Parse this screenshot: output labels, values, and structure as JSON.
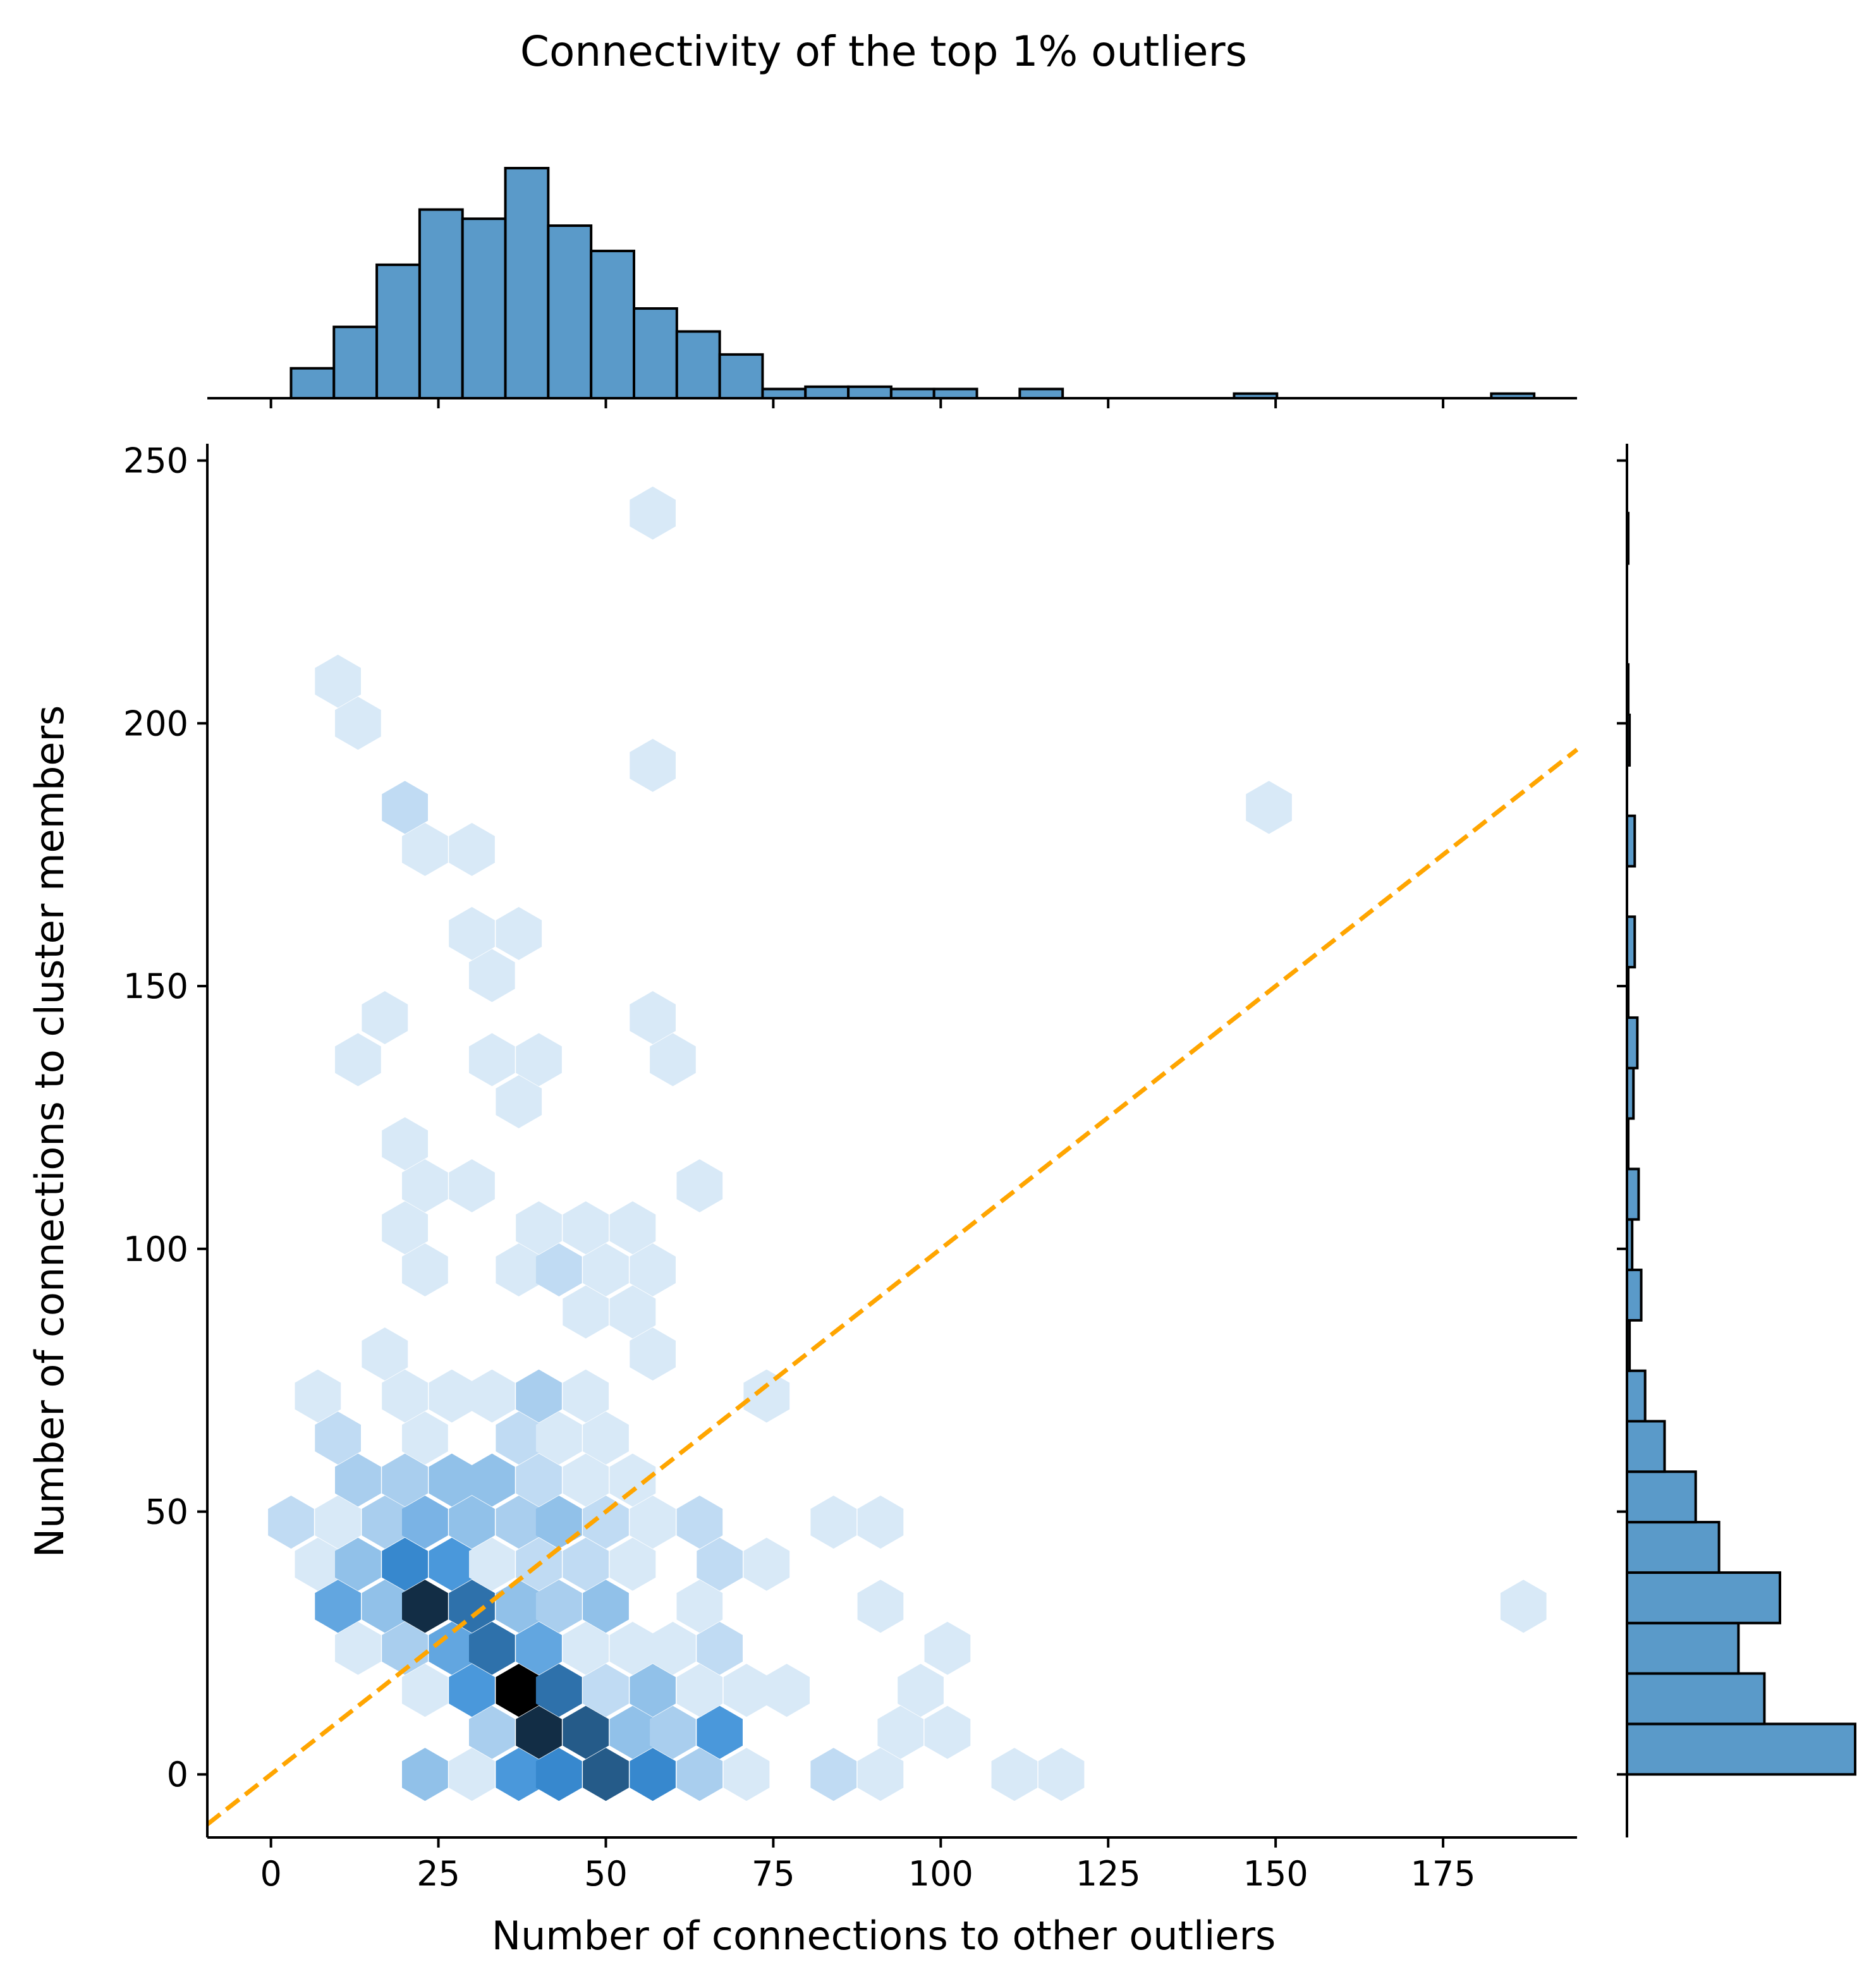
{
  "chart_data": {
    "type": "hexbin",
    "title": "Connectivity of the top 1% outliers",
    "xlabel": "Number of connections to other outliers",
    "ylabel": "Number of connections to cluster members",
    "xlim": [
      -9.5,
      195
    ],
    "ylim": [
      -12,
      252
    ],
    "xticks": [
      0,
      25,
      50,
      75,
      100,
      125,
      150,
      175
    ],
    "yticks": [
      0,
      50,
      100,
      150,
      200,
      250
    ],
    "reference_line": {
      "label": "y = x",
      "slope": 1,
      "intercept": 0,
      "color": "#ffa500",
      "style": "dashed"
    },
    "hex_color": "#3a8fd8",
    "hexbins": [
      [
        57,
        240,
        1
      ],
      [
        10,
        208,
        1
      ],
      [
        13,
        200,
        1
      ],
      [
        57,
        192,
        1
      ],
      [
        20,
        184,
        2
      ],
      [
        149,
        184,
        1
      ],
      [
        23,
        176,
        1
      ],
      [
        30,
        176,
        1
      ],
      [
        30,
        160,
        1
      ],
      [
        37,
        160,
        1
      ],
      [
        33,
        152,
        1
      ],
      [
        17,
        144,
        1
      ],
      [
        57,
        144,
        1
      ],
      [
        13,
        136,
        1
      ],
      [
        33,
        136,
        1
      ],
      [
        40,
        136,
        1
      ],
      [
        60,
        136,
        1
      ],
      [
        37,
        128,
        1
      ],
      [
        20,
        120,
        1
      ],
      [
        23,
        112,
        1
      ],
      [
        30,
        112,
        1
      ],
      [
        64,
        112,
        1
      ],
      [
        20,
        104,
        1
      ],
      [
        40,
        104,
        1
      ],
      [
        47,
        104,
        1
      ],
      [
        54,
        104,
        1
      ],
      [
        23,
        96,
        1
      ],
      [
        37,
        96,
        1
      ],
      [
        43,
        96,
        2
      ],
      [
        50,
        96,
        1
      ],
      [
        57,
        96,
        1
      ],
      [
        47,
        88,
        1
      ],
      [
        54,
        88,
        1
      ],
      [
        17,
        80,
        1
      ],
      [
        57,
        80,
        1
      ],
      [
        7,
        72,
        1
      ],
      [
        20,
        72,
        1
      ],
      [
        27,
        72,
        1
      ],
      [
        33,
        72,
        1
      ],
      [
        40,
        72,
        3
      ],
      [
        47,
        72,
        1
      ],
      [
        74,
        72,
        1
      ],
      [
        10,
        64,
        2
      ],
      [
        23,
        64,
        1
      ],
      [
        37,
        64,
        2
      ],
      [
        43,
        64,
        1
      ],
      [
        50,
        64,
        1
      ],
      [
        13,
        56,
        3
      ],
      [
        20,
        56,
        3
      ],
      [
        27,
        56,
        4
      ],
      [
        33,
        56,
        4
      ],
      [
        40,
        56,
        2
      ],
      [
        47,
        56,
        1
      ],
      [
        54,
        56,
        1
      ],
      [
        3,
        48,
        2
      ],
      [
        10,
        48,
        1
      ],
      [
        17,
        48,
        3
      ],
      [
        23,
        48,
        5
      ],
      [
        30,
        48,
        4
      ],
      [
        37,
        48,
        3
      ],
      [
        43,
        48,
        4
      ],
      [
        50,
        48,
        2
      ],
      [
        57,
        48,
        1
      ],
      [
        64,
        48,
        2
      ],
      [
        84,
        48,
        1
      ],
      [
        91,
        48,
        1
      ],
      [
        7,
        40,
        1
      ],
      [
        13,
        40,
        4
      ],
      [
        20,
        40,
        8
      ],
      [
        27,
        40,
        7
      ],
      [
        33,
        40,
        1
      ],
      [
        40,
        40,
        2
      ],
      [
        47,
        40,
        2
      ],
      [
        54,
        40,
        1
      ],
      [
        67,
        40,
        2
      ],
      [
        74,
        40,
        1
      ],
      [
        10,
        32,
        6
      ],
      [
        17,
        32,
        4
      ],
      [
        23,
        32,
        12
      ],
      [
        30,
        32,
        9
      ],
      [
        37,
        32,
        4
      ],
      [
        43,
        32,
        3
      ],
      [
        50,
        32,
        4
      ],
      [
        64,
        32,
        1
      ],
      [
        91,
        32,
        1
      ],
      [
        187,
        32,
        1
      ],
      [
        13,
        24,
        1
      ],
      [
        20,
        24,
        3
      ],
      [
        27,
        24,
        6
      ],
      [
        33,
        24,
        9
      ],
      [
        40,
        24,
        6
      ],
      [
        47,
        24,
        1
      ],
      [
        54,
        24,
        1
      ],
      [
        60,
        24,
        1
      ],
      [
        67,
        24,
        2
      ],
      [
        101,
        24,
        1
      ],
      [
        23,
        16,
        1
      ],
      [
        30,
        16,
        7
      ],
      [
        37,
        16,
        14
      ],
      [
        43,
        16,
        9
      ],
      [
        50,
        16,
        2
      ],
      [
        57,
        16,
        4
      ],
      [
        64,
        16,
        1
      ],
      [
        71,
        16,
        1
      ],
      [
        77,
        16,
        1
      ],
      [
        97,
        16,
        1
      ],
      [
        33,
        8,
        3
      ],
      [
        40,
        8,
        12
      ],
      [
        47,
        8,
        10
      ],
      [
        54,
        8,
        4
      ],
      [
        60,
        8,
        3
      ],
      [
        67,
        8,
        7
      ],
      [
        94,
        8,
        1
      ],
      [
        101,
        8,
        1
      ],
      [
        23,
        0,
        4
      ],
      [
        30,
        0,
        1
      ],
      [
        37,
        0,
        7
      ],
      [
        43,
        0,
        8
      ],
      [
        50,
        0,
        10
      ],
      [
        57,
        0,
        8
      ],
      [
        64,
        0,
        3
      ],
      [
        71,
        0,
        1
      ],
      [
        84,
        0,
        2
      ],
      [
        91,
        0,
        1
      ],
      [
        111,
        0,
        1
      ],
      [
        118,
        0,
        1
      ]
    ],
    "top_histogram": {
      "bin_edges": [
        3,
        9.4,
        15.8,
        22.2,
        28.6,
        35,
        41.4,
        47.8,
        54.2,
        60.6,
        67,
        73.4,
        79.8,
        86.2,
        92.6,
        99,
        105.4,
        111.8,
        118.2,
        124.6,
        131,
        137.4,
        143.8,
        150.2,
        156.6,
        163,
        169.4,
        175.8,
        182.2,
        188.6
      ],
      "counts": [
        13,
        31,
        58,
        82,
        78,
        100,
        75,
        64,
        39,
        29,
        19,
        4,
        5,
        5,
        4,
        4,
        0,
        4,
        0,
        0,
        0,
        0,
        2,
        0,
        0,
        0,
        0,
        0,
        2
      ]
    },
    "right_histogram": {
      "bin_edges": [
        0,
        9.6,
        19.2,
        28.8,
        38.4,
        48,
        57.6,
        67.2,
        76.8,
        86.4,
        96,
        105.6,
        115.2,
        124.8,
        134.4,
        144,
        153.6,
        163.2,
        172.8,
        182.4,
        192,
        201.6,
        211.2,
        220.8,
        230.4,
        240
      ],
      "counts": [
        176,
        106,
        86,
        118,
        71,
        53,
        29,
        14,
        2,
        11,
        4,
        9,
        1,
        5,
        8,
        1,
        6,
        0,
        6,
        0,
        2,
        1,
        0,
        0,
        1
      ]
    }
  }
}
